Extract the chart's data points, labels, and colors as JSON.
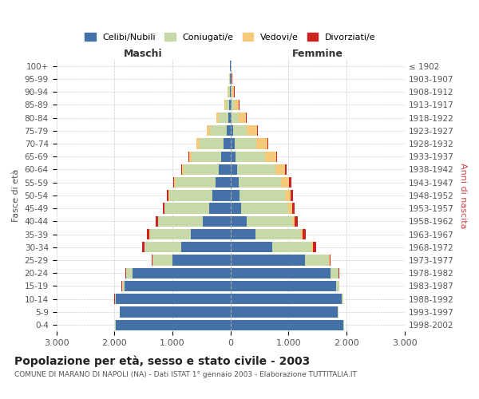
{
  "age_groups": [
    "100+",
    "95-99",
    "90-94",
    "85-89",
    "80-84",
    "75-79",
    "70-74",
    "65-69",
    "60-64",
    "55-59",
    "50-54",
    "45-49",
    "40-44",
    "35-39",
    "30-34",
    "25-29",
    "20-24",
    "15-19",
    "10-14",
    "5-9",
    "0-4"
  ],
  "birth_years": [
    "≤ 1902",
    "1903-1907",
    "1908-1912",
    "1913-1917",
    "1918-1922",
    "1923-1927",
    "1928-1932",
    "1933-1937",
    "1938-1942",
    "1943-1947",
    "1948-1952",
    "1953-1957",
    "1958-1962",
    "1963-1967",
    "1968-1972",
    "1973-1977",
    "1978-1982",
    "1983-1987",
    "1988-1992",
    "1993-1997",
    "1998-2002"
  ],
  "male": {
    "celibi": [
      3,
      8,
      12,
      18,
      35,
      60,
      120,
      160,
      200,
      260,
      310,
      370,
      480,
      680,
      850,
      1000,
      1680,
      1820,
      1980,
      1900,
      1980
    ],
    "coniugati": [
      4,
      12,
      25,
      65,
      160,
      290,
      410,
      510,
      610,
      690,
      740,
      760,
      760,
      710,
      630,
      340,
      120,
      50,
      15,
      8,
      8
    ],
    "vedovi": [
      1,
      4,
      12,
      25,
      45,
      55,
      55,
      45,
      28,
      18,
      13,
      8,
      6,
      4,
      3,
      2,
      1,
      1,
      1,
      1,
      1
    ],
    "divorziati": [
      1,
      2,
      2,
      3,
      4,
      4,
      7,
      9,
      14,
      22,
      28,
      32,
      38,
      50,
      45,
      18,
      8,
      4,
      2,
      1,
      1
    ]
  },
  "female": {
    "nubili": [
      3,
      8,
      12,
      18,
      22,
      45,
      70,
      90,
      110,
      140,
      160,
      190,
      280,
      430,
      720,
      1280,
      1720,
      1820,
      1920,
      1850,
      1950
    ],
    "coniugate": [
      4,
      8,
      25,
      55,
      120,
      240,
      370,
      500,
      660,
      730,
      780,
      810,
      780,
      780,
      680,
      420,
      140,
      55,
      18,
      8,
      8
    ],
    "vedove": [
      2,
      8,
      28,
      75,
      125,
      175,
      195,
      195,
      175,
      145,
      95,
      65,
      45,
      28,
      18,
      9,
      4,
      2,
      1,
      1,
      1
    ],
    "divorziate": [
      1,
      2,
      3,
      4,
      7,
      9,
      13,
      18,
      23,
      32,
      37,
      42,
      52,
      65,
      65,
      22,
      8,
      4,
      2,
      1,
      1
    ]
  },
  "colors": {
    "celibi_nubili": "#4472a8",
    "coniugati": "#c8d9a8",
    "vedovi": "#f5c97a",
    "divorziati": "#cc2222"
  },
  "xlim": 3000,
  "title": "Popolazione per età, sesso e stato civile - 2003",
  "subtitle": "COMUNE DI MARANO DI NAPOLI (NA) - Dati ISTAT 1° gennaio 2003 - Elaborazione TUTTITALIA.IT",
  "ylabel_left": "Fasce di età",
  "ylabel_right": "Anni di nascita",
  "xlabel_left": "Maschi",
  "xlabel_right": "Femmine",
  "bg_color": "#ffffff",
  "grid_color": "#cccccc"
}
